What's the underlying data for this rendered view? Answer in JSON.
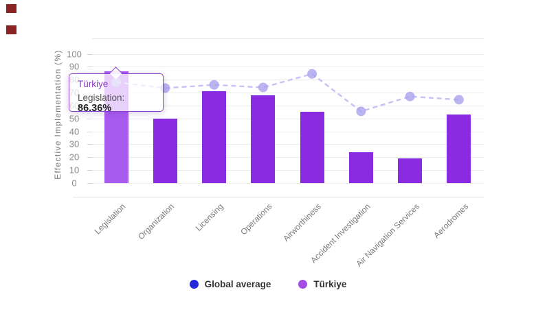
{
  "chart_data": {
    "type": "bar",
    "title": "",
    "categories": [
      "Legislation",
      "Organization",
      "Licensing",
      "Operations",
      "Airworthiness",
      "Accident Investigation",
      "Air Navigation Services",
      "Aerodromes"
    ],
    "series": [
      {
        "name": "Türkiye",
        "type": "bar",
        "values": [
          86.36,
          50,
          71,
          68,
          55,
          24,
          19,
          53
        ]
      },
      {
        "name": "Global average",
        "type": "line",
        "values": [
          78,
          73.5,
          76,
          74,
          84.5,
          55.5,
          67,
          64.5
        ]
      }
    ],
    "xlabel": "",
    "ylabel": "Effective Implementation (%)",
    "ylim": [
      0,
      100
    ],
    "y_ticks": [
      0,
      10,
      20,
      30,
      40,
      50,
      60,
      70,
      80,
      90,
      100
    ],
    "grid": true,
    "legend_position": "bottom",
    "highlighted_category": "Legislation"
  },
  "tooltip": {
    "series": "Türkiye",
    "category_label": "Legislation:",
    "value": "86.36%"
  },
  "legend": [
    {
      "label": "Global average",
      "color": "#2328dc"
    },
    {
      "label": "Türkiye",
      "color": "#a44ce6"
    }
  ],
  "colors": {
    "bar": "#8a2be2",
    "bar_highlight": "#a95cf0",
    "line": "#c9c2f5",
    "line_dot": "#a9a2ee",
    "grid": "#ebebeb",
    "tooltip_border": "#8a3fd0",
    "tooltip_title": "#8d3bca",
    "red_artifact": "#8b2525"
  }
}
